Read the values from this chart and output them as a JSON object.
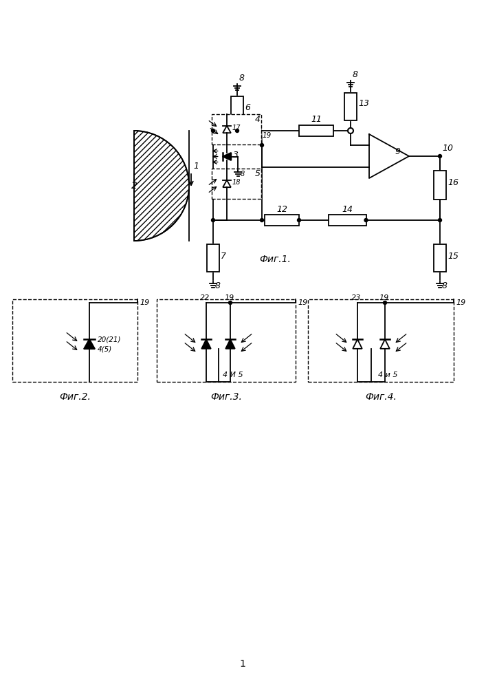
{
  "fig1_caption": "Фиг.1.",
  "fig2_caption": "Фиг.2.",
  "fig3_caption": "Фиг.3.",
  "fig4_caption": "Фиг.4.",
  "page_number": "1",
  "background_color": "#ffffff",
  "line_color": "#000000",
  "line_width": 1.3,
  "font_size": 9
}
